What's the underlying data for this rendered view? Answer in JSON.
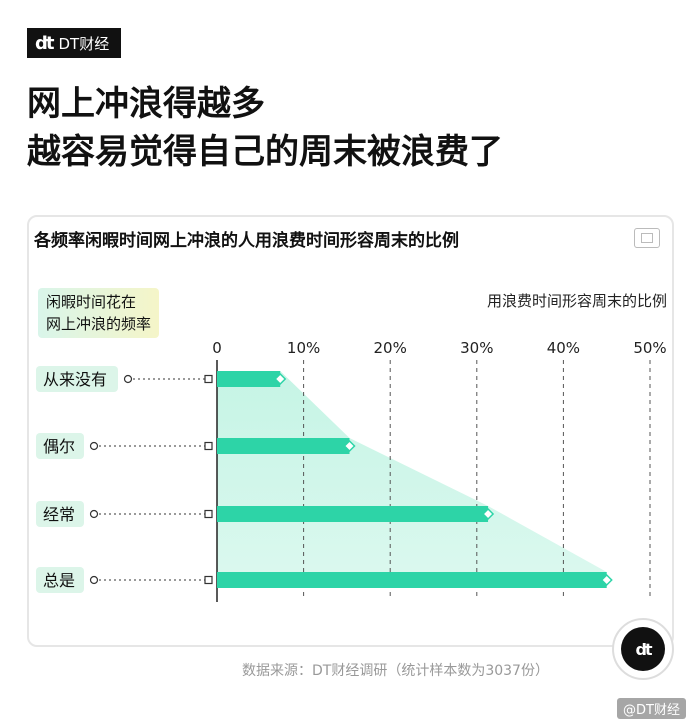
{
  "brand": {
    "logo_mark": "dt",
    "logo_text": "DT财经"
  },
  "headline": {
    "line1": "网上冲浪得越多",
    "line2": "越容易觉得自己的周末被浪费了"
  },
  "panel": {
    "title": "各频率闲暇时间网上冲浪的人用浪费时间形容周末的比例"
  },
  "chart_data": {
    "type": "bar",
    "orientation": "horizontal",
    "categories": [
      "从来没有",
      "偶尔",
      "经常",
      "总是"
    ],
    "values": [
      7.3,
      15.3,
      31.3,
      45.0
    ],
    "x_ticks": [
      "0",
      "10%",
      "20%",
      "30%",
      "40%",
      "50%"
    ],
    "xlim": [
      0,
      50
    ],
    "ylabel": "闲暇时间花在网上冲浪的频率",
    "ylabel_lines": [
      "闲暇时间花在",
      "网上冲浪的频率"
    ],
    "xlabel": "用浪费时间形容周末的比例",
    "grid": true,
    "bar_color": "#2dd4a7",
    "area_color": "#bff3e2"
  },
  "source": "数据来源：DT财经调研（统计样本数为3037份）",
  "badge": "dt",
  "footer": "@DT财经"
}
